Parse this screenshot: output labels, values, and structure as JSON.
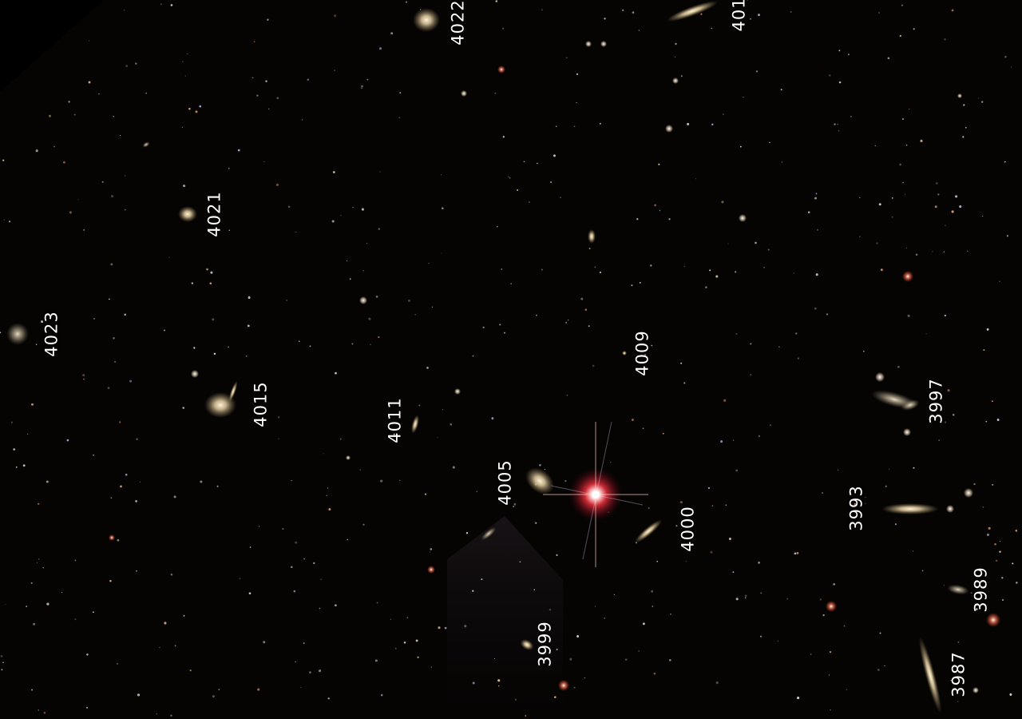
{
  "image": {
    "kind": "astronomical-sky-survey-field",
    "background_color": "#050403",
    "galaxy_color": "#d9c49a",
    "star_color": "#fff7e8",
    "bright_star_halo_color": "#e0303a",
    "label_color": "#ffffff"
  },
  "labels": {
    "n3987": "3987",
    "n3989": "3989",
    "n3993": "3993",
    "n3997": "3997",
    "n3999": "3999",
    "n4000": "4000",
    "n4005": "4005",
    "n4009": "4009",
    "n4011": "4011",
    "n4015": "4015",
    "n4021": "4021",
    "n4022": "4022",
    "n4023": "4023",
    "n401x": "401"
  }
}
